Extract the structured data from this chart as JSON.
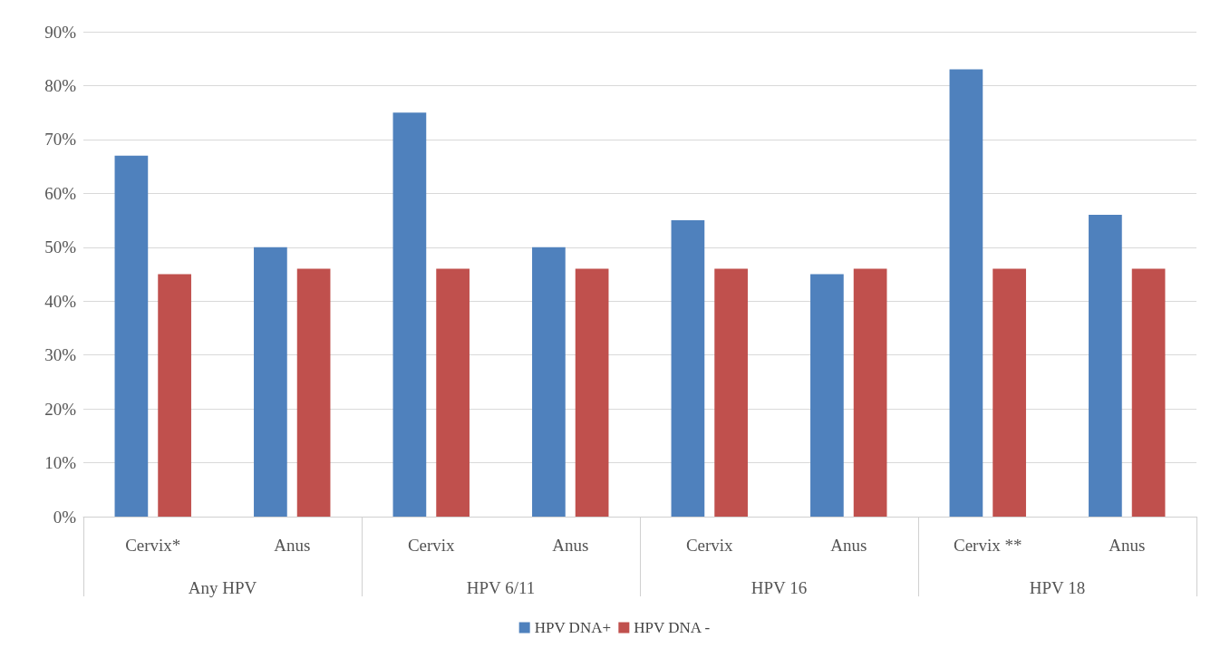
{
  "chart_data": {
    "type": "bar",
    "categories": [
      "Cervix*",
      "Anus",
      "Cervix",
      "Anus",
      "Cervix",
      "Anus",
      "Cervix **",
      "Anus"
    ],
    "annotations": [
      "Any HPV",
      "HPV 6/11",
      "HPV 16",
      "HPV 18"
    ],
    "series": [
      {
        "name": "HPV DNA+",
        "color": "#4f81bd",
        "values": [
          67,
          50,
          75,
          50,
          55,
          45,
          83,
          56
        ]
      },
      {
        "name": "HPV DNA -",
        "color": "#c0504d",
        "values": [
          45,
          46,
          46,
          46,
          46,
          46,
          46,
          46
        ]
      }
    ],
    "ylim": [
      0,
      90
    ],
    "yticks": [
      {
        "value": 0,
        "label": "0%"
      },
      {
        "value": 10,
        "label": "10%"
      },
      {
        "value": 20,
        "label": "20%"
      },
      {
        "value": 30,
        "label": "30%"
      },
      {
        "value": 40,
        "label": "40%"
      },
      {
        "value": 50,
        "label": "50%"
      },
      {
        "value": 60,
        "label": "60%"
      },
      {
        "value": 70,
        "label": "70%"
      },
      {
        "value": 80,
        "label": "80%"
      },
      {
        "value": 90,
        "label": "90%"
      }
    ],
    "grid": "y",
    "legend": "bottom"
  }
}
